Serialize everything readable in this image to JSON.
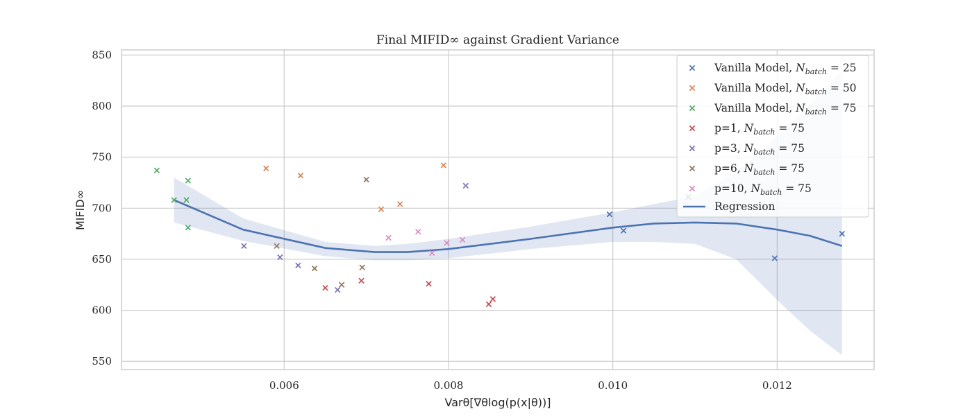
{
  "chart_data": {
    "type": "scatter",
    "title": "Final MIFID∞ against Gradient Variance",
    "xlabel": "Varθ[∇θlog(p(x|θ))]",
    "ylabel": "MIFID∞",
    "xlim": [
      0.00402,
      0.01318
    ],
    "ylim": [
      542,
      855
    ],
    "xticks": [
      "0.006",
      "0.008",
      "0.010",
      "0.012"
    ],
    "xtick_values": [
      0.006,
      0.008,
      0.01,
      0.012
    ],
    "yticks": [
      "550",
      "600",
      "650",
      "700",
      "750",
      "800",
      "850"
    ],
    "ytick_values": [
      550,
      600,
      650,
      700,
      750,
      800,
      850
    ],
    "grid": true,
    "legend_position": "top-right",
    "series": [
      {
        "name": "Vanilla Model, Nbatch = 25",
        "prefix": "Vanilla Model, ",
        "n": "25",
        "color": "#4c72b0",
        "points": [
          [
            0.00996,
            694
          ],
          [
            0.01013,
            678
          ],
          [
            0.01092,
            711
          ],
          [
            0.01197,
            651
          ],
          [
            0.01279,
            675
          ]
        ]
      },
      {
        "name": "Vanilla Model, Nbatch = 50",
        "prefix": "Vanilla Model, ",
        "n": "50",
        "color": "#dd8452",
        "points": [
          [
            0.00578,
            739
          ],
          [
            0.0062,
            732
          ],
          [
            0.00718,
            699
          ],
          [
            0.00741,
            704
          ],
          [
            0.00794,
            742
          ]
        ]
      },
      {
        "name": "Vanilla Model, Nbatch = 75",
        "prefix": "Vanilla Model, ",
        "n": "75",
        "color": "#55a868",
        "points": [
          [
            0.00445,
            737
          ],
          [
            0.00466,
            708
          ],
          [
            0.00481,
            708
          ],
          [
            0.00483,
            727
          ],
          [
            0.00483,
            681
          ]
        ]
      },
      {
        "name": "p=1, Nbatch = 75",
        "prefix": "p=1, ",
        "n": "75",
        "color": "#c44e52",
        "points": [
          [
            0.0065,
            622
          ],
          [
            0.00694,
            629
          ],
          [
            0.00776,
            626
          ],
          [
            0.00849,
            606
          ],
          [
            0.00854,
            611
          ]
        ]
      },
      {
        "name": "p=3, Nbatch = 75",
        "prefix": "p=3, ",
        "n": "75",
        "color": "#8172b3",
        "points": [
          [
            0.00551,
            663
          ],
          [
            0.00595,
            652
          ],
          [
            0.00617,
            644
          ],
          [
            0.00665,
            620
          ],
          [
            0.00821,
            722
          ]
        ]
      },
      {
        "name": "p=6, Nbatch = 75",
        "prefix": "p=6, ",
        "n": "75",
        "color": "#937860",
        "points": [
          [
            0.00591,
            663
          ],
          [
            0.00637,
            641
          ],
          [
            0.0067,
            625
          ],
          [
            0.00695,
            642
          ],
          [
            0.007,
            728
          ]
        ]
      },
      {
        "name": "p=10, Nbatch = 75",
        "prefix": "p=10, ",
        "n": "75",
        "color": "#da8bc3",
        "points": [
          [
            0.00727,
            671
          ],
          [
            0.00763,
            677
          ],
          [
            0.0078,
            656
          ],
          [
            0.00798,
            666
          ],
          [
            0.00817,
            669
          ]
        ]
      }
    ],
    "regression": {
      "name": "Regression",
      "color": "#4c72b0",
      "x": [
        0.00466,
        0.0055,
        0.0065,
        0.0071,
        0.0075,
        0.008,
        0.009,
        0.01,
        0.0105,
        0.011,
        0.0115,
        0.012,
        0.0124,
        0.01279
      ],
      "y": [
        708,
        679,
        661,
        657,
        657,
        660,
        670,
        681,
        685,
        686,
        685,
        679,
        673,
        663
      ],
      "ci_upper": [
        730,
        690,
        667,
        663,
        665,
        670,
        682,
        696,
        704,
        712,
        735,
        770,
        802,
        835
      ],
      "ci_lower": [
        686,
        668,
        653,
        649,
        649,
        651,
        660,
        667,
        667,
        665,
        650,
        610,
        580,
        556
      ]
    }
  }
}
